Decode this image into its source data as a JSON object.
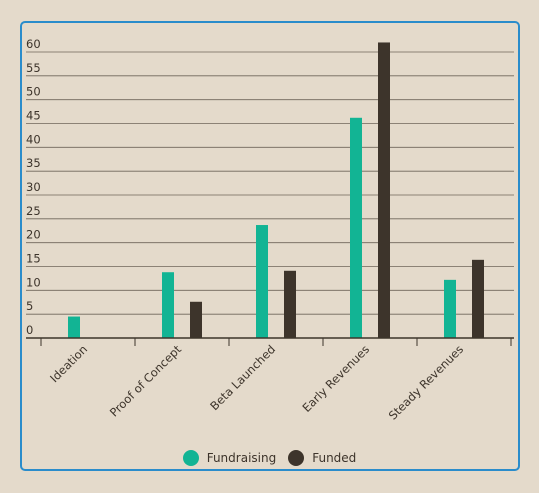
{
  "colors": {
    "background": "#e4dacb",
    "frame": "#2a8ccb",
    "grid": "#3d342b",
    "text": "#3d342b"
  },
  "chart_data": {
    "type": "bar",
    "categories": [
      "Ideation",
      "Proof of Concept",
      "Beta Launched",
      "Early Revenues",
      "Steady Revenues"
    ],
    "series": [
      {
        "name": "Fundraising",
        "color": "#12b494",
        "values": [
          4.5,
          13.8,
          23.7,
          46.2,
          12.2
        ]
      },
      {
        "name": "Funded",
        "color": "#3d342b",
        "values": [
          0,
          7.6,
          14.1,
          62.0,
          16.4
        ]
      }
    ],
    "yticks": [
      0,
      5,
      10,
      15,
      20,
      25,
      30,
      35,
      40,
      45,
      50,
      55,
      60
    ],
    "ylim": [
      0,
      62
    ],
    "grid": true,
    "legend_position": "bottom-center",
    "title": "",
    "xlabel": "",
    "ylabel": ""
  }
}
